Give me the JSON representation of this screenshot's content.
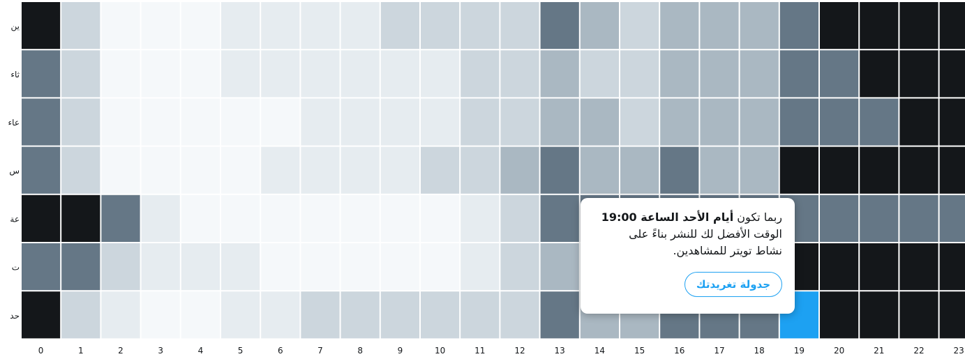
{
  "chart_data": {
    "type": "heatmap",
    "days": [
      "ين",
      "ثاء",
      "عاء",
      "س",
      "عة",
      "ت",
      "حد"
    ],
    "hours": [
      "0",
      "1",
      "2",
      "3",
      "4",
      "5",
      "6",
      "7",
      "8",
      "9",
      "10",
      "11",
      "12",
      "13",
      "14",
      "15",
      "16",
      "17",
      "18",
      "19",
      "20",
      "21",
      "22",
      "23"
    ],
    "levels": [
      [
        6,
        2,
        0,
        0,
        0,
        1,
        1,
        1,
        1,
        2,
        2,
        2,
        2,
        4,
        3,
        2,
        3,
        3,
        3,
        4,
        6,
        6,
        6,
        6
      ],
      [
        4,
        2,
        0,
        0,
        0,
        1,
        1,
        1,
        1,
        1,
        1,
        2,
        2,
        3,
        2,
        2,
        3,
        3,
        3,
        4,
        4,
        6,
        6,
        6
      ],
      [
        4,
        2,
        0,
        0,
        0,
        0,
        0,
        1,
        1,
        1,
        1,
        2,
        2,
        3,
        3,
        2,
        3,
        3,
        3,
        4,
        4,
        4,
        6,
        6
      ],
      [
        4,
        2,
        0,
        0,
        0,
        0,
        1,
        1,
        1,
        1,
        2,
        2,
        3,
        4,
        3,
        3,
        4,
        3,
        3,
        6,
        6,
        6,
        6,
        6
      ],
      [
        6,
        6,
        4,
        1,
        0,
        0,
        0,
        0,
        0,
        0,
        0,
        1,
        2,
        4,
        4,
        4,
        4,
        4,
        4,
        4,
        4,
        4,
        4,
        4
      ],
      [
        4,
        4,
        2,
        1,
        1,
        1,
        0,
        0,
        0,
        0,
        0,
        1,
        2,
        3,
        3,
        3,
        3,
        3,
        6,
        6,
        6,
        6,
        6,
        6
      ],
      [
        6,
        2,
        1,
        0,
        0,
        1,
        1,
        2,
        2,
        2,
        2,
        2,
        2,
        4,
        3,
        3,
        4,
        4,
        4,
        5,
        6,
        6,
        6,
        6
      ]
    ],
    "color_scale": [
      "#f5f8fa",
      "#e6ecf0",
      "#ccd6dd",
      "#aab8c2",
      "#657786",
      "#1da1f2",
      "#14171a"
    ],
    "highlight": {
      "day": "حد",
      "hour": "19"
    }
  },
  "tooltip": {
    "prefix": "ربما تكون ",
    "bold": "أيام الأحد الساعة 19:00",
    "line2": "الوقت الأفضل لك للنشر بناءً على",
    "line3": "نشاط تويتر للمشاهدين.",
    "button": "جدولة تغريدتك"
  }
}
